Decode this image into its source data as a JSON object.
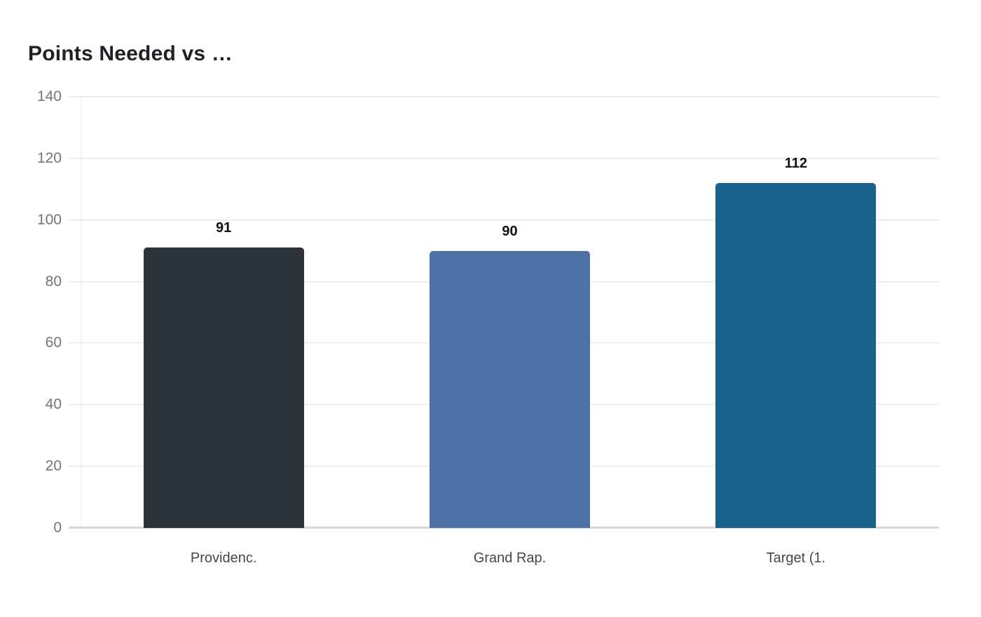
{
  "page": {
    "background": "#ffffff"
  },
  "chart_data": {
    "type": "bar",
    "title": "Points Needed vs …",
    "categories": [
      "Providenc.",
      "Grand Rap.",
      "Target (1."
    ],
    "values": [
      91,
      90,
      112
    ],
    "bar_colors": [
      "#2c343a",
      "#4c71a5",
      "#186289"
    ],
    "yticks": [
      0,
      20,
      40,
      60,
      80,
      100,
      120,
      140
    ],
    "ylim": [
      0,
      140
    ],
    "xlabel": "",
    "ylabel": "",
    "grid": true,
    "legend": false,
    "value_labels_shown": true,
    "colors": {
      "title": "#1e2126",
      "y_tick_label": "#757575",
      "x_tick_label": "#42474d",
      "value_label": "#111111",
      "gridline": "#ededed",
      "baseline": "#d5d7d9",
      "axis_dotted_line": "#dcdcdc"
    }
  }
}
